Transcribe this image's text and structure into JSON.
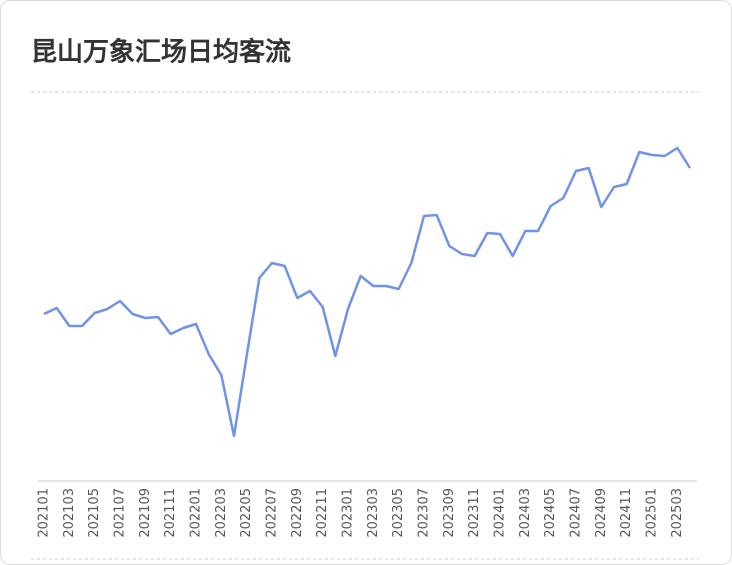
{
  "chart_data": {
    "type": "line",
    "title": "昆山万象汇场日均客流",
    "categories": [
      "202101",
      null,
      "202103",
      null,
      "202105",
      null,
      "202107",
      null,
      "202109",
      null,
      "202111",
      null,
      "202201",
      null,
      "202203",
      null,
      "202205",
      null,
      "202207",
      null,
      "202209",
      null,
      "202211",
      null,
      "202301",
      null,
      "202303",
      null,
      "202305",
      null,
      "202307",
      null,
      "202309",
      null,
      "202311",
      null,
      "202401",
      null,
      "202403",
      null,
      "202405",
      null,
      "202407",
      null,
      "202409",
      null,
      "202411",
      null,
      "202501",
      null,
      "202503",
      null
    ],
    "series": [
      {
        "color": "#6f93e8",
        "values": [
          167,
          173,
          155,
          155,
          168,
          172,
          180,
          167,
          163,
          164,
          147,
          153,
          157,
          127,
          106,
          45,
          125,
          203,
          218,
          215,
          183,
          190,
          174,
          125,
          172,
          205,
          195,
          195,
          192,
          218,
          265,
          266,
          235,
          227,
          225,
          248,
          247,
          225,
          250,
          250,
          275,
          283,
          310,
          313,
          274,
          294,
          297,
          329,
          326,
          325,
          333,
          313
        ]
      }
    ]
  }
}
